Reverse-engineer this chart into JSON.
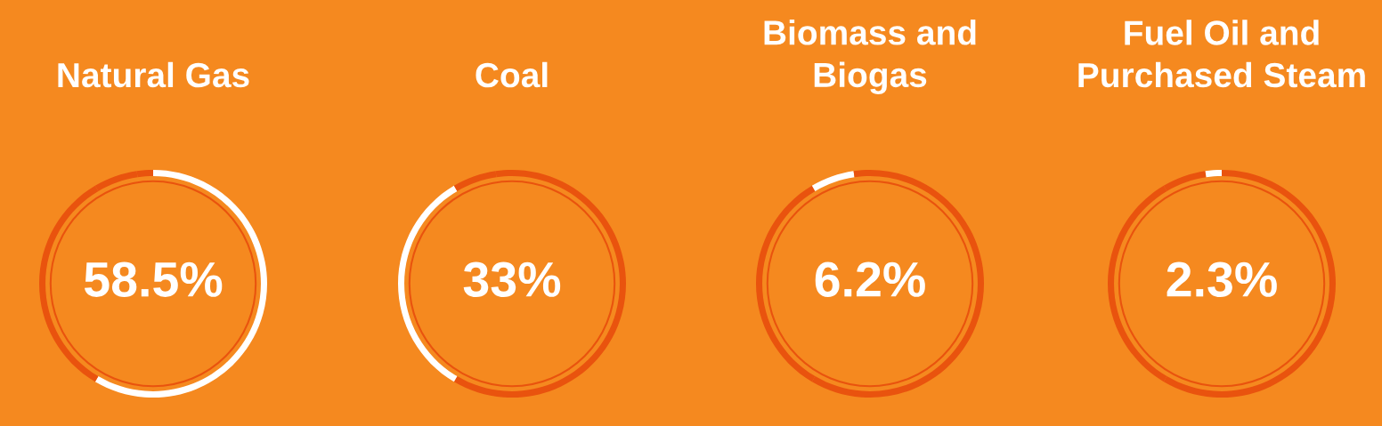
{
  "chart_data": [
    {
      "type": "donut",
      "title": "Natural Gas",
      "categories": [
        null,
        null,
        null,
        null
      ],
      "values": [
        58.5,
        33,
        6.2,
        2.3
      ],
      "colors": [
        "#ffffff",
        "#e9530e",
        "#e9530e",
        "#e9530e"
      ],
      "annotations": [
        "58.5%"
      ]
    },
    {
      "type": "donut",
      "title": "Coal",
      "categories": [
        null,
        null,
        null,
        null
      ],
      "values": [
        58.5,
        33,
        6.2,
        2.3
      ],
      "colors": [
        "#e9530e",
        "#ffffff",
        "#e9530e",
        "#e9530e"
      ],
      "annotations": [
        "33%"
      ]
    },
    {
      "type": "donut",
      "title": "Biomass and\nBiogas",
      "categories": [
        null,
        null,
        null,
        null
      ],
      "values": [
        58.5,
        33,
        6.2,
        2.3
      ],
      "colors": [
        "#e9530e",
        "#e9530e",
        "#ffffff",
        "#e9530e"
      ],
      "annotations": [
        "6.2%"
      ]
    },
    {
      "type": "donut",
      "title": "Fuel Oil and\nPurchased Steam",
      "categories": [
        null,
        null,
        null,
        null
      ],
      "values": [
        58.5,
        33,
        6.2,
        2.3
      ],
      "colors": [
        "#e9530e",
        "#e9530e",
        "#e9530e",
        "#ffffff"
      ],
      "annotations": [
        "2.3%"
      ]
    }
  ]
}
